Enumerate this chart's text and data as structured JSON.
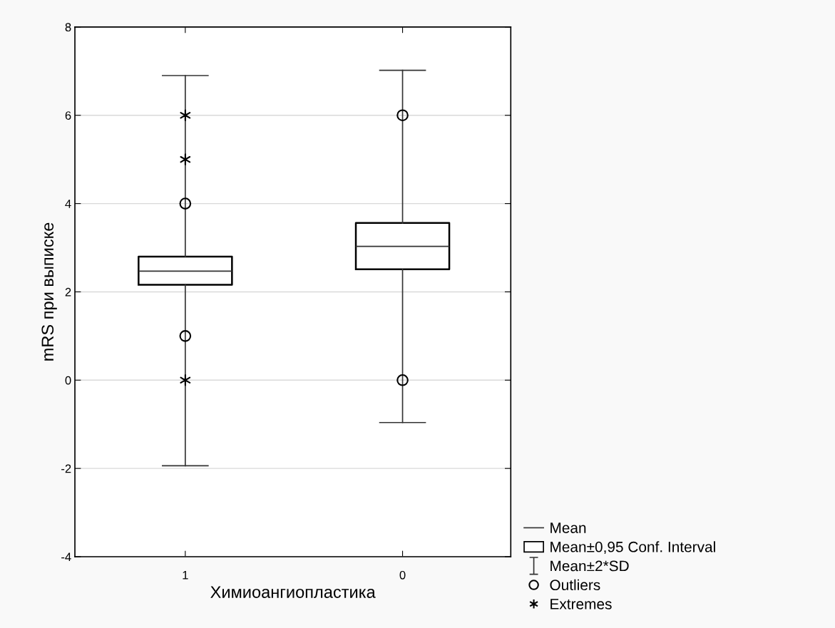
{
  "chart_data": {
    "type": "box",
    "xlabel": "Химиоангиопластика",
    "ylabel": "mRS при выписке",
    "categories": [
      "1",
      "0"
    ],
    "boxes": [
      {
        "low": -1.94,
        "q1": 2.16,
        "median": 2.47,
        "q3": 2.8,
        "high": 6.9
      },
      {
        "low": -0.96,
        "q1": 2.51,
        "median": 3.03,
        "q3": 3.56,
        "high": 7.02
      }
    ],
    "series": [
      {
        "type": "scatter",
        "name": "Outliers",
        "marker": "circle",
        "color": "#000000",
        "x": [
          "1",
          "1",
          "0",
          "0"
        ],
        "values": [
          4,
          1,
          6,
          0
        ]
      },
      {
        "type": "scatter",
        "name": "Extremes",
        "marker": "cross",
        "color": "#000000",
        "x": [
          "1",
          "1",
          "1"
        ],
        "values": [
          6,
          5,
          0
        ]
      }
    ],
    "annotations": [
      "Mean",
      "Mean±0,95 Conf. Interval",
      "Mean±2*SD"
    ],
    "ylim": [
      -4,
      8
    ],
    "yticks": [
      -4,
      -2,
      0,
      2,
      4,
      6,
      8
    ],
    "grid": "y",
    "legend": "bottom right"
  }
}
